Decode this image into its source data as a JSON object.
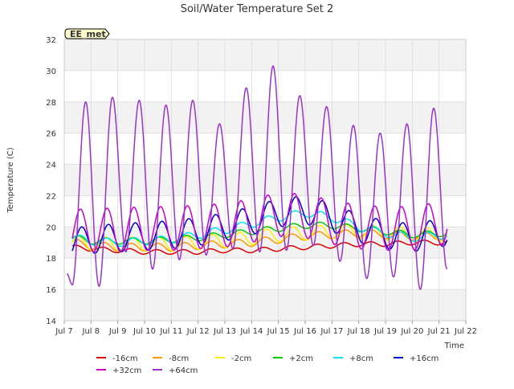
{
  "chart_data": {
    "type": "line",
    "title": "Soil/Water Temperature Set 2",
    "xlabel": "Time",
    "ylabel": "Temperature (C)",
    "site_label": "EE_met",
    "xlim": [
      7,
      22
    ],
    "ylim": [
      14,
      32
    ],
    "x_ticks": [
      {
        "value": 7,
        "label": "Jul 7"
      },
      {
        "value": 8,
        "label": "Jul 8"
      },
      {
        "value": 9,
        "label": "Jul 9"
      },
      {
        "value": 10,
        "label": "Jul 10"
      },
      {
        "value": 11,
        "label": "Jul 11"
      },
      {
        "value": 12,
        "label": "Jul 12"
      },
      {
        "value": 13,
        "label": "Jul 13"
      },
      {
        "value": 14,
        "label": "Jul 14"
      },
      {
        "value": 15,
        "label": "Jul 15"
      },
      {
        "value": 16,
        "label": "Jul 16"
      },
      {
        "value": 17,
        "label": "Jul 17"
      },
      {
        "value": 18,
        "label": "Jul 18"
      },
      {
        "value": 19,
        "label": "Jul 19"
      },
      {
        "value": 20,
        "label": "Jul 20"
      },
      {
        "value": 21,
        "label": "Jul 21"
      },
      {
        "value": 22,
        "label": "Jul 22"
      }
    ],
    "y_ticks": [
      14,
      16,
      18,
      20,
      22,
      24,
      26,
      28,
      30,
      32
    ],
    "grid": true,
    "legend_position": "bottom",
    "series": [
      {
        "name": "-16cm",
        "color": "#dd0000",
        "x": [
          7.3,
          8,
          9,
          10,
          11,
          12,
          13,
          14,
          15,
          16,
          17,
          18,
          19,
          20,
          21.3
        ],
        "y": [
          18.7,
          18.6,
          18.5,
          18.4,
          18.4,
          18.4,
          18.5,
          18.5,
          18.6,
          18.7,
          18.8,
          18.9,
          18.9,
          19.0,
          19.0
        ],
        "daily_amplitude": 0.15,
        "peak_phase": 0.45
      },
      {
        "name": "-8cm",
        "color": "#ff9900",
        "x": [
          7.3,
          8,
          9,
          10,
          11,
          12,
          13,
          14,
          15,
          16,
          17,
          18,
          19,
          20,
          21.3
        ],
        "y": [
          19.0,
          18.8,
          18.7,
          18.7,
          18.7,
          18.8,
          18.9,
          19.0,
          19.2,
          19.4,
          19.5,
          19.6,
          19.5,
          19.4,
          19.4
        ],
        "daily_amplitude": 0.25,
        "peak_phase": 0.5
      },
      {
        "name": "-2cm",
        "color": "#ffee00",
        "x": [
          7.3,
          8,
          9,
          10,
          11,
          12,
          13,
          14,
          15,
          16,
          17,
          18,
          19,
          20,
          21.3
        ],
        "y": [
          19.0,
          18.9,
          18.9,
          18.9,
          18.9,
          19.0,
          19.1,
          19.3,
          19.5,
          19.6,
          19.7,
          19.7,
          19.6,
          19.5,
          19.5
        ],
        "daily_amplitude": 0.45,
        "peak_phase": 0.55
      },
      {
        "name": "+2cm",
        "color": "#00cc00",
        "x": [
          7.3,
          8,
          9,
          10,
          11,
          12,
          13,
          14,
          15,
          16,
          17,
          18,
          19,
          20,
          21.3
        ],
        "y": [
          19.3,
          19.1,
          19.1,
          19.1,
          19.2,
          19.3,
          19.5,
          19.7,
          19.9,
          20.1,
          20.1,
          19.9,
          19.7,
          19.5,
          19.6
        ],
        "daily_amplitude": 0.2,
        "peak_phase": 0.55
      },
      {
        "name": "+8cm",
        "color": "#00e5ee",
        "x": [
          7.3,
          8,
          9,
          10,
          11,
          12,
          13,
          14,
          15,
          16,
          17,
          18,
          19,
          20,
          21.3
        ],
        "y": [
          19.3,
          19.1,
          19.0,
          19.1,
          19.2,
          19.5,
          19.8,
          20.2,
          20.6,
          20.9,
          20.6,
          20.0,
          19.6,
          19.3,
          19.5
        ],
        "daily_amplitude": 0.25,
        "peak_phase": 0.6
      },
      {
        "name": "+16cm",
        "color": "#0000cc",
        "x": [
          7.3,
          8,
          9,
          10,
          11,
          12,
          13,
          14,
          15,
          16,
          17,
          18,
          19,
          20,
          21.3
        ],
        "y": [
          19.0,
          19.2,
          19.3,
          19.4,
          19.5,
          19.7,
          20.0,
          20.4,
          20.9,
          21.1,
          20.6,
          19.9,
          19.5,
          19.3,
          19.7
        ],
        "daily_amplitude": 0.9,
        "peak_phase": 0.65
      },
      {
        "name": "+32cm",
        "color": "#cc00cc",
        "x": [
          7.3,
          8,
          9,
          10,
          11,
          12,
          13,
          14,
          15,
          16,
          17,
          18,
          19,
          20,
          21.3
        ],
        "y": [
          19.7,
          19.8,
          19.8,
          19.9,
          19.9,
          20.0,
          20.1,
          20.4,
          20.8,
          20.7,
          20.3,
          20.0,
          19.9,
          19.9,
          20.3
        ],
        "daily_amplitude": 1.4,
        "peak_phase": 0.6
      },
      {
        "name": "+64cm",
        "color": "#9933cc",
        "x": [
          7.1,
          7.3,
          7.8,
          8.3,
          8.8,
          9.3,
          9.8,
          10.3,
          10.8,
          11.3,
          11.8,
          12.3,
          12.8,
          13.3,
          13.8,
          14.3,
          14.8,
          15.3,
          15.8,
          16.3,
          16.8,
          17.3,
          17.8,
          18.3,
          18.8,
          19.3,
          19.8,
          20.3,
          20.8,
          21.3
        ],
        "y": [
          17.0,
          16.3,
          28.0,
          16.2,
          28.3,
          18.4,
          28.1,
          17.3,
          27.8,
          17.9,
          28.1,
          18.2,
          26.6,
          18.6,
          28.9,
          18.4,
          30.3,
          18.5,
          28.4,
          18.8,
          27.7,
          17.8,
          26.5,
          16.7,
          26.0,
          16.8,
          26.6,
          16.0,
          27.6,
          17.3
        ]
      }
    ]
  }
}
